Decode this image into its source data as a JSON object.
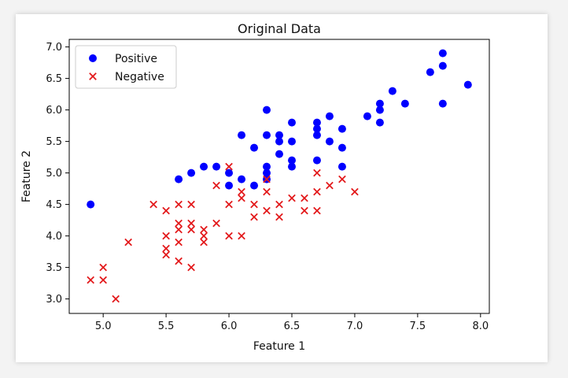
{
  "chart_data": {
    "type": "scatter",
    "title": "Original Data",
    "xlabel": "Feature 1",
    "ylabel": "Feature 2",
    "xlim": [
      4.73,
      8.07
    ],
    "ylim": [
      2.77,
      7.12
    ],
    "xticks": [
      "5.0",
      "5.5",
      "6.0",
      "6.5",
      "7.0",
      "7.5",
      "8.0"
    ],
    "yticks": [
      "3.0",
      "3.5",
      "4.0",
      "4.5",
      "5.0",
      "5.5",
      "6.0",
      "6.5",
      "7.0"
    ],
    "grid": false,
    "legend_position": "top-left",
    "series": [
      {
        "name": "Positive",
        "marker": "circle",
        "color": "#0000ff",
        "points": [
          [
            4.9,
            4.5
          ],
          [
            5.6,
            4.9
          ],
          [
            5.7,
            5.0
          ],
          [
            5.8,
            5.1
          ],
          [
            5.9,
            5.1
          ],
          [
            6.0,
            4.8
          ],
          [
            6.0,
            5.0
          ],
          [
            6.1,
            4.9
          ],
          [
            6.1,
            5.6
          ],
          [
            6.2,
            4.8
          ],
          [
            6.2,
            5.4
          ],
          [
            6.3,
            4.9
          ],
          [
            6.3,
            5.0
          ],
          [
            6.3,
            5.1
          ],
          [
            6.3,
            5.6
          ],
          [
            6.3,
            6.0
          ],
          [
            6.4,
            5.3
          ],
          [
            6.4,
            5.5
          ],
          [
            6.4,
            5.6
          ],
          [
            6.5,
            5.1
          ],
          [
            6.5,
            5.2
          ],
          [
            6.5,
            5.5
          ],
          [
            6.5,
            5.8
          ],
          [
            6.7,
            5.2
          ],
          [
            6.7,
            5.6
          ],
          [
            6.7,
            5.7
          ],
          [
            6.7,
            5.8
          ],
          [
            6.8,
            5.5
          ],
          [
            6.8,
            5.9
          ],
          [
            6.9,
            5.1
          ],
          [
            6.9,
            5.4
          ],
          [
            6.9,
            5.7
          ],
          [
            7.1,
            5.9
          ],
          [
            7.2,
            5.8
          ],
          [
            7.2,
            6.0
          ],
          [
            7.2,
            6.1
          ],
          [
            7.3,
            6.3
          ],
          [
            7.4,
            6.1
          ],
          [
            7.6,
            6.6
          ],
          [
            7.7,
            6.1
          ],
          [
            7.7,
            6.7
          ],
          [
            7.7,
            6.9
          ],
          [
            7.9,
            6.4
          ]
        ]
      },
      {
        "name": "Negative",
        "marker": "x",
        "color": "#e31a1c",
        "points": [
          [
            4.9,
            3.3
          ],
          [
            5.0,
            3.3
          ],
          [
            5.0,
            3.5
          ],
          [
            5.1,
            3.0
          ],
          [
            5.2,
            3.9
          ],
          [
            5.4,
            4.5
          ],
          [
            5.5,
            3.7
          ],
          [
            5.5,
            3.8
          ],
          [
            5.5,
            4.0
          ],
          [
            5.5,
            4.4
          ],
          [
            5.6,
            3.6
          ],
          [
            5.6,
            3.9
          ],
          [
            5.6,
            4.1
          ],
          [
            5.6,
            4.2
          ],
          [
            5.6,
            4.5
          ],
          [
            5.7,
            3.5
          ],
          [
            5.7,
            4.1
          ],
          [
            5.7,
            4.2
          ],
          [
            5.7,
            4.5
          ],
          [
            5.8,
            3.9
          ],
          [
            5.8,
            4.0
          ],
          [
            5.8,
            4.1
          ],
          [
            5.9,
            4.2
          ],
          [
            5.9,
            4.8
          ],
          [
            6.0,
            4.0
          ],
          [
            6.0,
            4.5
          ],
          [
            6.0,
            5.1
          ],
          [
            6.1,
            4.0
          ],
          [
            6.1,
            4.6
          ],
          [
            6.1,
            4.7
          ],
          [
            6.2,
            4.3
          ],
          [
            6.2,
            4.5
          ],
          [
            6.3,
            4.4
          ],
          [
            6.3,
            4.7
          ],
          [
            6.3,
            4.9
          ],
          [
            6.4,
            4.3
          ],
          [
            6.4,
            4.5
          ],
          [
            6.5,
            4.6
          ],
          [
            6.6,
            4.4
          ],
          [
            6.6,
            4.6
          ],
          [
            6.7,
            4.4
          ],
          [
            6.7,
            4.7
          ],
          [
            6.7,
            5.0
          ],
          [
            6.8,
            4.8
          ],
          [
            6.9,
            4.9
          ],
          [
            7.0,
            4.7
          ]
        ]
      }
    ]
  }
}
